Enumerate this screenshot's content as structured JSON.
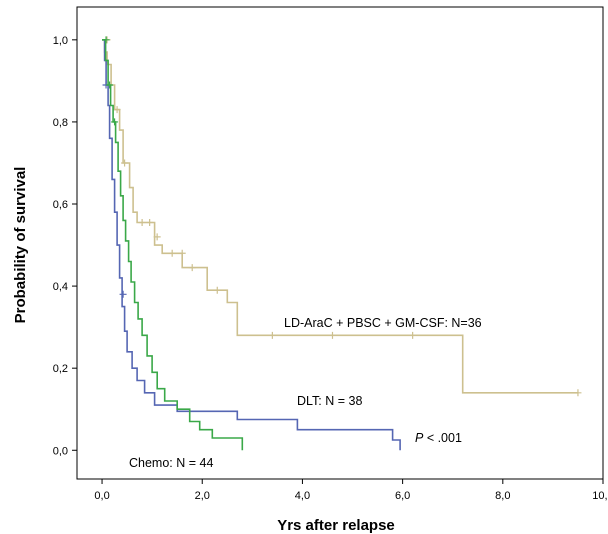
{
  "chart_data": {
    "type": "line",
    "subtype": "kaplan-meier",
    "xlabel": "Yrs after relapse",
    "ylabel": "Probability of survival",
    "xlim": [
      -0.5,
      10.0
    ],
    "ylim": [
      -0.07,
      1.08
    ],
    "x_ticks": [
      "0,0",
      "2,0",
      "4,0",
      "6,0",
      "8,0",
      "10,0"
    ],
    "x_tick_values": [
      0,
      2,
      4,
      6,
      8,
      10
    ],
    "y_ticks": [
      "0,0",
      "0,2",
      "0,4",
      "0,6",
      "0,8",
      "1,0"
    ],
    "y_tick_values": [
      0,
      0.2,
      0.4,
      0.6,
      0.8,
      1.0
    ],
    "grid": false,
    "series": [
      {
        "name": "LD-AraC + PBSC + GM-CSF: N=36",
        "color": "#cdc08f",
        "points": [
          [
            0,
            1.0
          ],
          [
            0.05,
            0.97
          ],
          [
            0.1,
            0.94
          ],
          [
            0.18,
            0.89
          ],
          [
            0.25,
            0.83
          ],
          [
            0.35,
            0.78
          ],
          [
            0.42,
            0.7
          ],
          [
            0.55,
            0.64
          ],
          [
            0.62,
            0.58
          ],
          [
            0.7,
            0.555
          ],
          [
            1.05,
            0.5
          ],
          [
            1.2,
            0.48
          ],
          [
            1.6,
            0.445
          ],
          [
            2.1,
            0.39
          ],
          [
            2.5,
            0.36
          ],
          [
            2.7,
            0.28
          ],
          [
            7.2,
            0.28
          ],
          [
            7.2,
            0.14
          ],
          [
            9.5,
            0.14
          ]
        ],
        "censored": [
          [
            0.1,
            1.0
          ],
          [
            0.3,
            0.83
          ],
          [
            0.45,
            0.7
          ],
          [
            0.8,
            0.555
          ],
          [
            0.95,
            0.555
          ],
          [
            1.1,
            0.52
          ],
          [
            1.4,
            0.48
          ],
          [
            1.6,
            0.48
          ],
          [
            1.8,
            0.445
          ],
          [
            2.3,
            0.39
          ],
          [
            3.4,
            0.28
          ],
          [
            4.6,
            0.28
          ],
          [
            6.2,
            0.28
          ],
          [
            9.5,
            0.14
          ]
        ]
      },
      {
        "name": "DLT: N = 38",
        "color": "#5566b3",
        "points": [
          [
            0,
            1.0
          ],
          [
            0.05,
            0.95
          ],
          [
            0.08,
            0.89
          ],
          [
            0.12,
            0.84
          ],
          [
            0.15,
            0.76
          ],
          [
            0.2,
            0.66
          ],
          [
            0.25,
            0.58
          ],
          [
            0.3,
            0.5
          ],
          [
            0.35,
            0.42
          ],
          [
            0.4,
            0.35
          ],
          [
            0.45,
            0.29
          ],
          [
            0.5,
            0.24
          ],
          [
            0.6,
            0.2
          ],
          [
            0.7,
            0.17
          ],
          [
            0.85,
            0.14
          ],
          [
            1.05,
            0.11
          ],
          [
            1.5,
            0.095
          ],
          [
            2.7,
            0.075
          ],
          [
            3.9,
            0.05
          ],
          [
            5.8,
            0.025
          ],
          [
            5.95,
            0.0
          ]
        ],
        "censored": [
          [
            0.08,
            0.89
          ],
          [
            0.42,
            0.38
          ]
        ]
      },
      {
        "name": "Chemo: N = 44",
        "color": "#3aa848",
        "points": [
          [
            0,
            1.0
          ],
          [
            0.07,
            0.95
          ],
          [
            0.12,
            0.89
          ],
          [
            0.17,
            0.84
          ],
          [
            0.22,
            0.8
          ],
          [
            0.27,
            0.75
          ],
          [
            0.32,
            0.68
          ],
          [
            0.37,
            0.62
          ],
          [
            0.42,
            0.56
          ],
          [
            0.47,
            0.51
          ],
          [
            0.53,
            0.46
          ],
          [
            0.58,
            0.41
          ],
          [
            0.65,
            0.36
          ],
          [
            0.72,
            0.32
          ],
          [
            0.8,
            0.28
          ],
          [
            0.9,
            0.23
          ],
          [
            1.0,
            0.19
          ],
          [
            1.1,
            0.15
          ],
          [
            1.25,
            0.12
          ],
          [
            1.5,
            0.1
          ],
          [
            1.75,
            0.07
          ],
          [
            1.95,
            0.05
          ],
          [
            2.2,
            0.03
          ],
          [
            2.8,
            0.03
          ],
          [
            2.8,
            0.0
          ]
        ],
        "censored": [
          [
            0.08,
            1.0
          ],
          [
            0.15,
            0.89
          ],
          [
            0.25,
            0.8
          ]
        ]
      }
    ],
    "annotations": {
      "ld_label": "LD-AraC + PBSC + GM-CSF: N=36",
      "dlt_label": "DLT: N = 38",
      "chemo_label": "Chemo: N = 44",
      "p_italic": "P",
      "p_rest": " < .001"
    }
  }
}
